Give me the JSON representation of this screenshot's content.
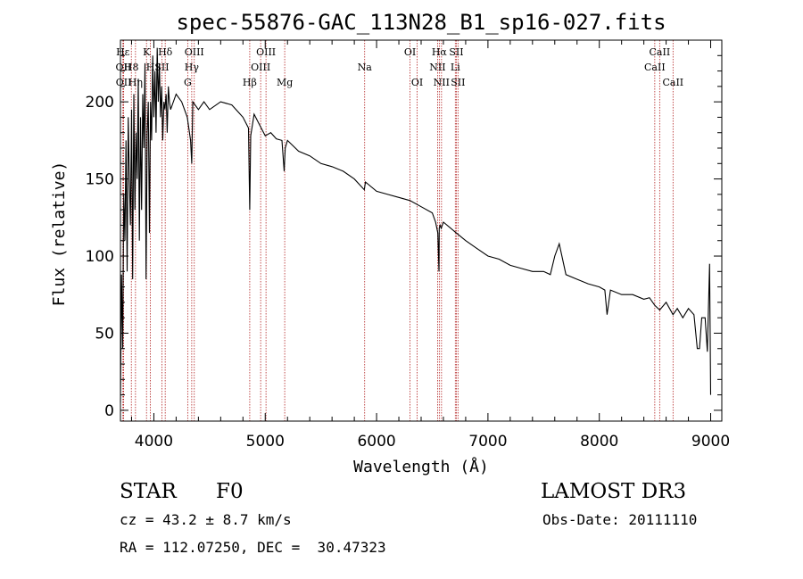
{
  "chart_data": {
    "type": "line",
    "title": "spec-55876-GAC_113N28_B1_sp16-027.fits",
    "xlabel": "Wavelength (Å)",
    "ylabel": "Flux (relative)",
    "xlim": [
      3700,
      9100
    ],
    "ylim": [
      -7,
      240
    ],
    "xticks": [
      4000,
      5000,
      6000,
      7000,
      8000,
      9000
    ],
    "yticks": [
      0,
      50,
      100,
      150,
      200
    ],
    "series": [
      {
        "name": "flux",
        "x": [
          3700,
          3710,
          3720,
          3730,
          3740,
          3750,
          3760,
          3770,
          3780,
          3790,
          3800,
          3810,
          3820,
          3830,
          3840,
          3850,
          3860,
          3870,
          3880,
          3890,
          3900,
          3910,
          3920,
          3930,
          3940,
          3950,
          3960,
          3970,
          3980,
          3990,
          4000,
          4010,
          4020,
          4030,
          4040,
          4050,
          4060,
          4070,
          4080,
          4090,
          4100,
          4110,
          4120,
          4130,
          4140,
          4150,
          4200,
          4250,
          4300,
          4330,
          4340,
          4350,
          4400,
          4450,
          4500,
          4600,
          4700,
          4800,
          4850,
          4861,
          4870,
          4900,
          4950,
          5000,
          5050,
          5100,
          5150,
          5170,
          5180,
          5200,
          5300,
          5400,
          5500,
          5600,
          5700,
          5800,
          5890,
          5900,
          6000,
          6100,
          6200,
          6300,
          6400,
          6500,
          6530,
          6550,
          6560,
          6563,
          6570,
          6580,
          6600,
          6700,
          6800,
          6900,
          7000,
          7100,
          7200,
          7300,
          7400,
          7500,
          7560,
          7600,
          7640,
          7700,
          7800,
          7900,
          8000,
          8050,
          8070,
          8100,
          8200,
          8300,
          8400,
          8450,
          8498,
          8542,
          8600,
          8662,
          8700,
          8750,
          8800,
          8850,
          8880,
          8900,
          8920,
          8950,
          8970,
          8990,
          9000
        ],
        "values": [
          5,
          88,
          40,
          140,
          110,
          175,
          90,
          190,
          150,
          120,
          195,
          85,
          205,
          130,
          180,
          150,
          215,
          110,
          190,
          130,
          205,
          170,
          225,
          85,
          180,
          200,
          115,
          200,
          175,
          230,
          190,
          220,
          180,
          235,
          200,
          225,
          190,
          210,
          175,
          200,
          195,
          205,
          180,
          210,
          200,
          195,
          205,
          200,
          190,
          175,
          160,
          200,
          195,
          200,
          195,
          200,
          198,
          190,
          183,
          130,
          178,
          192,
          185,
          178,
          180,
          176,
          175,
          155,
          170,
          175,
          168,
          165,
          160,
          158,
          155,
          150,
          143,
          148,
          142,
          140,
          138,
          136,
          132,
          128,
          122,
          115,
          90,
          118,
          120,
          118,
          122,
          116,
          110,
          105,
          100,
          98,
          94,
          92,
          90,
          90,
          88,
          100,
          108,
          88,
          85,
          82,
          80,
          78,
          62,
          78,
          75,
          75,
          72,
          73,
          68,
          65,
          70,
          62,
          66,
          60,
          66,
          62,
          40,
          40,
          60,
          60,
          38,
          95,
          10
        ]
      }
    ],
    "lines": [
      {
        "label": "Hε",
        "wavelength": 3722,
        "row": 0
      },
      {
        "label": "OII",
        "wavelength": 3727,
        "row": 1
      },
      {
        "label": "OII",
        "wavelength": 3729,
        "row": 2
      },
      {
        "label": "H8",
        "wavelength": 3798,
        "row": 1
      },
      {
        "label": "Hη",
        "wavelength": 3835,
        "row": 2
      },
      {
        "label": "K",
        "wavelength": 3934,
        "row": 0
      },
      {
        "label": "H",
        "wavelength": 3969,
        "row": 1
      },
      {
        "label": "SII",
        "wavelength": 4072,
        "row": 1
      },
      {
        "label": "Hδ",
        "wavelength": 4102,
        "row": 0
      },
      {
        "label": "Hγ",
        "wavelength": 4340,
        "row": 1
      },
      {
        "label": "G",
        "wavelength": 4304,
        "row": 2
      },
      {
        "label": "OIII",
        "wavelength": 4363,
        "row": 0
      },
      {
        "label": "Hβ",
        "wavelength": 4861,
        "row": 2
      },
      {
        "label": "OIII",
        "wavelength": 4959,
        "row": 1
      },
      {
        "label": "OIII",
        "wavelength": 5007,
        "row": 0
      },
      {
        "label": "Mg",
        "wavelength": 5175,
        "row": 2
      },
      {
        "label": "Na",
        "wavelength": 5893,
        "row": 1
      },
      {
        "label": "OI",
        "wavelength": 6300,
        "row": 0
      },
      {
        "label": "OI",
        "wavelength": 6364,
        "row": 2
      },
      {
        "label": "NII",
        "wavelength": 6548,
        "row": 1
      },
      {
        "label": "Hα",
        "wavelength": 6563,
        "row": 0
      },
      {
        "label": "NII",
        "wavelength": 6583,
        "row": 2
      },
      {
        "label": "Li",
        "wavelength": 6707,
        "row": 1
      },
      {
        "label": "SII",
        "wavelength": 6716,
        "row": 0
      },
      {
        "label": "SII",
        "wavelength": 6731,
        "row": 2
      },
      {
        "label": "CaII",
        "wavelength": 8498,
        "row": 1
      },
      {
        "label": "CaII",
        "wavelength": 8542,
        "row": 0
      },
      {
        "label": "CaII",
        "wavelength": 8662,
        "row": 2
      }
    ]
  },
  "info": {
    "object_class": "STAR",
    "subclass": "F0",
    "survey": "LAMOST DR3",
    "redshift": "cz = 43.2 ± 8.7 km/s",
    "obs_date": "Obs-Date: 20111110",
    "coords": "RA = 112.07250, DEC =  30.47323"
  },
  "colors": {
    "axes": "#000000",
    "spectrum": "#000000",
    "line_markers": "#b22222"
  }
}
